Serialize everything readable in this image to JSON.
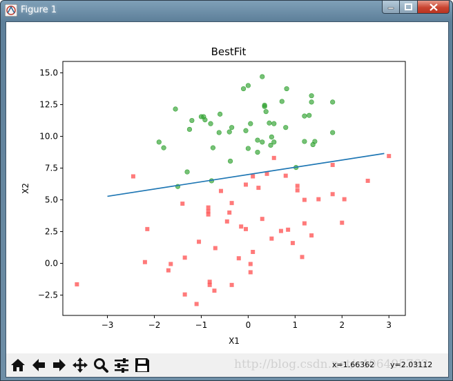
{
  "window": {
    "title": "Figure 1",
    "icon": "matplotlib-figure-icon"
  },
  "toolbar": {
    "buttons": [
      {
        "name": "home-icon",
        "tooltip": "Home"
      },
      {
        "name": "back-arrow-icon",
        "tooltip": "Back"
      },
      {
        "name": "forward-arrow-icon",
        "tooltip": "Forward"
      },
      {
        "name": "pan-icon",
        "tooltip": "Pan"
      },
      {
        "name": "zoom-icon",
        "tooltip": "Zoom"
      },
      {
        "name": "subplots-icon",
        "tooltip": "Configure subplots"
      },
      {
        "name": "save-icon",
        "tooltip": "Save"
      }
    ],
    "x_readout": "x=1.66362",
    "y_readout": "y=2.03112",
    "watermark": "http://blog.csdn.net/c406495762"
  },
  "colors": {
    "class1": "#ff4d4d",
    "class0": "#2ca02c",
    "fit_line": "#1f77b4"
  },
  "chart_data": {
    "type": "scatter",
    "title": "BestFit",
    "xlabel": "X1",
    "ylabel": "X2",
    "xlim": [
      -3.95,
      3.35
    ],
    "ylim": [
      -4.1,
      15.9
    ],
    "xticks": [
      -3,
      -2,
      -1,
      0,
      1,
      2,
      3
    ],
    "yticks": [
      -2.5,
      0.0,
      2.5,
      5.0,
      7.5,
      10.0,
      12.5,
      15.0
    ],
    "ytick_labels": [
      "−2.5",
      "0.0",
      "2.5",
      "5.0",
      "7.5",
      "10.0",
      "12.5",
      "15.0"
    ],
    "xtick_labels": [
      "−3",
      "−2",
      "−1",
      "0",
      "1",
      "2",
      "3"
    ],
    "grid": false,
    "series": [
      {
        "marker": "square",
        "color": "#ff4d4d",
        "points": [
          [
            -3.65,
            -1.65
          ],
          [
            -2.45,
            6.85
          ],
          [
            -2.2,
            0.1
          ],
          [
            -2.15,
            2.7
          ],
          [
            -1.7,
            -0.55
          ],
          [
            -1.65,
            -0.05
          ],
          [
            -1.4,
            4.7
          ],
          [
            -1.35,
            -2.45
          ],
          [
            -1.35,
            0.45
          ],
          [
            -1.1,
            -3.2
          ],
          [
            -1.05,
            1.7
          ],
          [
            -0.85,
            4.4
          ],
          [
            -0.85,
            4.1
          ],
          [
            -0.85,
            3.85
          ],
          [
            -0.82,
            -1.45
          ],
          [
            -0.82,
            -1.7
          ],
          [
            -0.72,
            -2.15
          ],
          [
            -0.7,
            1.2
          ],
          [
            -0.58,
            5.7
          ],
          [
            -0.45,
            3.3
          ],
          [
            -0.4,
            4.0
          ],
          [
            -0.35,
            4.75
          ],
          [
            -0.35,
            -1.7
          ],
          [
            -0.2,
            0.4
          ],
          [
            -0.15,
            2.9
          ],
          [
            -0.05,
            6.2
          ],
          [
            -0.05,
            2.7
          ],
          [
            0.05,
            -0.05
          ],
          [
            0.05,
            -0.7
          ],
          [
            0.1,
            0.9
          ],
          [
            0.1,
            6.85
          ],
          [
            0.22,
            5.95
          ],
          [
            0.3,
            3.5
          ],
          [
            0.4,
            7.05
          ],
          [
            0.5,
            1.95
          ],
          [
            0.55,
            8.3
          ],
          [
            0.7,
            2.55
          ],
          [
            0.8,
            6.9
          ],
          [
            0.85,
            2.65
          ],
          [
            0.95,
            1.6
          ],
          [
            1.05,
            5.75
          ],
          [
            1.05,
            6.1
          ],
          [
            1.15,
            0.5
          ],
          [
            1.2,
            5.0
          ],
          [
            1.2,
            3.15
          ],
          [
            1.35,
            2.2
          ],
          [
            1.5,
            5.05
          ],
          [
            1.8,
            5.45
          ],
          [
            1.8,
            7.75
          ],
          [
            2.0,
            3.2
          ],
          [
            2.05,
            5.05
          ],
          [
            2.55,
            6.5
          ],
          [
            3.0,
            8.45
          ]
        ]
      },
      {
        "marker": "circle",
        "color": "#2ca02c",
        "points": [
          [
            -1.9,
            9.55
          ],
          [
            -1.8,
            9.1
          ],
          [
            -1.55,
            12.15
          ],
          [
            -1.5,
            6.05
          ],
          [
            -1.3,
            7.2
          ],
          [
            -1.25,
            10.55
          ],
          [
            -1.2,
            11.25
          ],
          [
            -1.0,
            11.55
          ],
          [
            -0.95,
            11.55
          ],
          [
            -0.92,
            11.3
          ],
          [
            -0.8,
            11.0
          ],
          [
            -0.75,
            9.1
          ],
          [
            -0.78,
            6.5
          ],
          [
            -0.62,
            10.3
          ],
          [
            -0.6,
            11.75
          ],
          [
            -0.4,
            10.35
          ],
          [
            -0.38,
            8.05
          ],
          [
            -0.35,
            10.7
          ],
          [
            -0.1,
            13.75
          ],
          [
            -0.05,
            10.45
          ],
          [
            0.0,
            14.0
          ],
          [
            0.0,
            9.05
          ],
          [
            0.05,
            11.0
          ],
          [
            0.2,
            9.7
          ],
          [
            0.2,
            8.75
          ],
          [
            0.3,
            9.55
          ],
          [
            0.3,
            14.7
          ],
          [
            0.35,
            12.35
          ],
          [
            0.35,
            12.45
          ],
          [
            0.38,
            11.95
          ],
          [
            0.45,
            11.05
          ],
          [
            0.48,
            9.3
          ],
          [
            0.5,
            9.95
          ],
          [
            0.55,
            11.0
          ],
          [
            0.55,
            9.55
          ],
          [
            0.72,
            12.75
          ],
          [
            0.8,
            10.7
          ],
          [
            0.82,
            13.75
          ],
          [
            1.02,
            7.55
          ],
          [
            1.2,
            9.6
          ],
          [
            1.2,
            11.6
          ],
          [
            1.3,
            11.65
          ],
          [
            1.35,
            12.7
          ],
          [
            1.35,
            13.2
          ],
          [
            1.38,
            9.35
          ],
          [
            1.42,
            9.6
          ],
          [
            1.8,
            10.3
          ],
          [
            1.8,
            12.7
          ]
        ]
      }
    ],
    "fit_line": {
      "x": [
        -3.0,
        2.9
      ],
      "y": [
        5.28,
        8.65
      ]
    }
  }
}
